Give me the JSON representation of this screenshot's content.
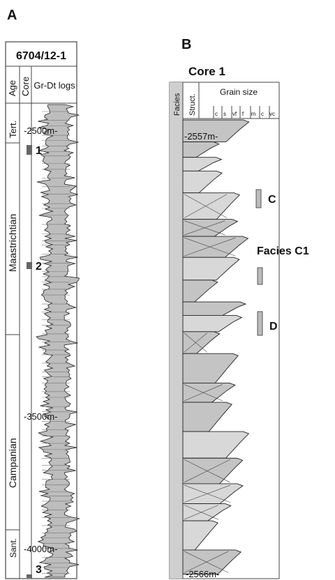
{
  "panel_a": {
    "label": "A",
    "well": "6704/12-1",
    "columns": [
      "Age",
      "Core",
      "Gr-Dt logs"
    ],
    "ages": [
      "Tert.",
      "Maastrichtian",
      "Campanian",
      "Sant."
    ],
    "depths": [
      "-2500m-",
      "-3500m-",
      "-4000m-"
    ],
    "cores": [
      "1",
      "2",
      "3"
    ]
  },
  "panel_b": {
    "label": "B",
    "title": "Core 1",
    "columns": [
      "Facies",
      "Struct.",
      "Grain size"
    ],
    "grain_classes": [
      "c",
      "s",
      "vf",
      "f",
      "m",
      "c",
      "vc"
    ],
    "depths": [
      "-2557m-",
      "-2566m-"
    ],
    "annotations": [
      "C",
      "Facies C1",
      "D"
    ]
  }
}
